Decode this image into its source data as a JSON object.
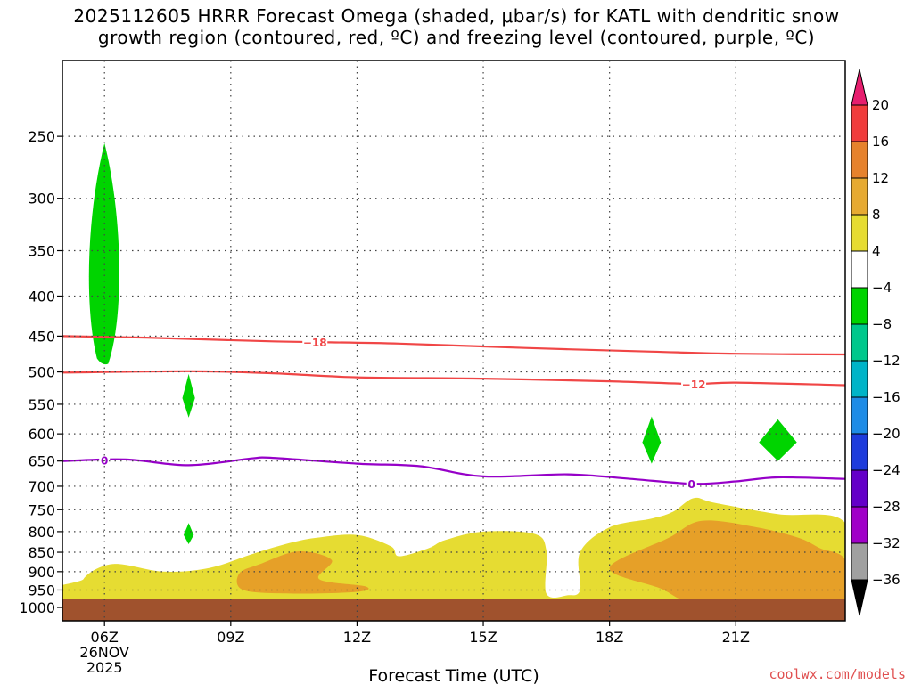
{
  "title": {
    "line1": "2025112605 HRRR Forecast Omega (shaded, μbar/s) for KATL with dendritic snow",
    "line2": "growth region (contoured, red, ºC) and freezing level (contoured, purple, ºC)"
  },
  "credit": "coolwx.com/models",
  "colors": {
    "green": "#00d400",
    "yellow": "#e6dc32",
    "orange": "#e6a028",
    "ground": "#a0522d",
    "red_contour": "#f04646",
    "purple_contour": "#9600c8"
  },
  "chart_data": {
    "type": "heatmap",
    "xlabel": "Forecast Time (UTC)",
    "ylabel": "",
    "x_hours_range": [
      5,
      23.6
    ],
    "y_pressure_range": [
      1040,
      200
    ],
    "y_ticks": [
      250,
      300,
      350,
      400,
      450,
      500,
      550,
      600,
      650,
      700,
      750,
      800,
      850,
      900,
      950,
      1000
    ],
    "x_ticks": [
      {
        "hour": 6,
        "label": "06Z",
        "sub1": "26NOV",
        "sub2": "2025"
      },
      {
        "hour": 9,
        "label": "09Z"
      },
      {
        "hour": 12,
        "label": "12Z"
      },
      {
        "hour": 15,
        "label": "15Z"
      },
      {
        "hour": 18,
        "label": "18Z"
      },
      {
        "hour": 21,
        "label": "21Z"
      }
    ],
    "colorbar_labels": [
      "20",
      "16",
      "12",
      "8",
      "4",
      "-4",
      "-8",
      "-12",
      "-16",
      "-20",
      "-24",
      "-28",
      "-32",
      "-36"
    ],
    "colorbar_colors": [
      "#e61e6e",
      "#f03c3c",
      "#e6822d",
      "#e6aa32",
      "#e6dc32",
      "#ffffff",
      "#00d400",
      "#00c88c",
      "#00b4c8",
      "#1e8ce6",
      "#1e3cdc",
      "#6400c8",
      "#a000c8",
      "#a0a0a0"
    ],
    "contours": [
      {
        "value": "-18",
        "color": "red",
        "points": [
          [
            5,
            450
          ],
          [
            7,
            452
          ],
          [
            10,
            457
          ],
          [
            13,
            460
          ],
          [
            16,
            466
          ],
          [
            19,
            471
          ],
          [
            21,
            474
          ],
          [
            23.6,
            475
          ]
        ],
        "label_hour": 11
      }
    ],
    "contours_all": [
      {
        "value": "-18",
        "color": "red",
        "label": "-18",
        "label_hour": 11,
        "points": [
          [
            5,
            450
          ],
          [
            7,
            452
          ],
          [
            10,
            457
          ],
          [
            13,
            460
          ],
          [
            16,
            466
          ],
          [
            19,
            471
          ],
          [
            21,
            474
          ],
          [
            23.6,
            475
          ]
        ]
      },
      {
        "value": "-12",
        "color": "red",
        "label": "-12",
        "label_hour": 20,
        "points": [
          [
            5,
            501
          ],
          [
            8,
            499
          ],
          [
            10,
            502
          ],
          [
            12,
            508
          ],
          [
            15,
            510
          ],
          [
            18,
            514
          ],
          [
            20,
            518
          ],
          [
            21,
            516
          ],
          [
            23.6,
            520
          ]
        ]
      },
      {
        "value": "0",
        "color": "purple",
        "label": "0",
        "label_hour": 6,
        "points": [
          [
            5,
            650
          ],
          [
            6.5,
            647
          ],
          [
            8,
            658
          ],
          [
            9.5,
            645
          ],
          [
            10,
            644
          ],
          [
            12,
            655
          ],
          [
            13.5,
            660
          ],
          [
            15,
            680
          ],
          [
            17,
            676
          ],
          [
            18.5,
            685
          ],
          [
            20,
            695
          ],
          [
            21,
            690
          ],
          [
            22,
            682
          ],
          [
            23.6,
            685
          ]
        ],
        "label2_hour": 19.95
      }
    ],
    "shaded_regions": [
      {
        "category": "-4 to -8",
        "color": "green",
        "shape": "ellipse",
        "center": [
          6,
          380
        ],
        "half_width_hours": 0.45,
        "top": 255,
        "bottom": 488
      },
      {
        "category": "-4 to -8",
        "color": "green",
        "shape": "diamond",
        "center": [
          8,
          540
        ],
        "half_width_hours": 0.15,
        "top": 503,
        "bottom": 572
      },
      {
        "category": "-4 to -8",
        "color": "green",
        "shape": "diamond",
        "center": [
          8,
          808
        ],
        "half_width_hours": 0.12,
        "top": 780,
        "bottom": 830
      },
      {
        "category": "-4 to -8",
        "color": "green",
        "shape": "diamond",
        "center": [
          19,
          615
        ],
        "half_width_hours": 0.22,
        "top": 570,
        "bottom": 655
      },
      {
        "category": "-4 to -8",
        "color": "green",
        "shape": "diamond",
        "center": [
          22,
          615
        ],
        "half_width_hours": 0.45,
        "top": 575,
        "bottom": 650
      }
    ],
    "positive_omega": {
      "yellow_4_to_8": [
        [
          5.6,
          980
        ],
        [
          5.5,
          920
        ],
        [
          6.2,
          880
        ],
        [
          7.4,
          900
        ],
        [
          8.5,
          890
        ],
        [
          9.5,
          855
        ],
        [
          10.3,
          830
        ],
        [
          11,
          815
        ],
        [
          12,
          808
        ],
        [
          12.8,
          835
        ],
        [
          13,
          860
        ],
        [
          13.7,
          840
        ],
        [
          14.1,
          820
        ],
        [
          15,
          800
        ],
        [
          16.2,
          805
        ],
        [
          16.5,
          845
        ],
        [
          16.5,
          960
        ],
        [
          17,
          965
        ],
        [
          17.3,
          950
        ],
        [
          17.3,
          850
        ],
        [
          18,
          790
        ],
        [
          19,
          770
        ],
        [
          19.5,
          755
        ],
        [
          20,
          725
        ],
        [
          20.5,
          735
        ],
        [
          22,
          760
        ],
        [
          23.6,
          780
        ],
        [
          23.6,
          980
        ]
      ],
      "orange_8_to_12": [
        [
          9.3,
          950
        ],
        [
          9.2,
          905
        ],
        [
          9.7,
          880
        ],
        [
          10.6,
          848
        ],
        [
          11.4,
          870
        ],
        [
          11.1,
          920
        ],
        [
          12.2,
          940
        ],
        [
          12,
          955
        ],
        [
          10.5,
          960
        ]
      ],
      "orange_8_to_12_b": [
        [
          20,
          985
        ],
        [
          19.2,
          945
        ],
        [
          18,
          890
        ],
        [
          19.4,
          815
        ],
        [
          20.2,
          775
        ],
        [
          21.5,
          790
        ],
        [
          22.5,
          815
        ],
        [
          23,
          840
        ],
        [
          23.6,
          870
        ],
        [
          23.6,
          990
        ],
        [
          22,
          992
        ]
      ]
    },
    "ground_pressure": 975
  }
}
